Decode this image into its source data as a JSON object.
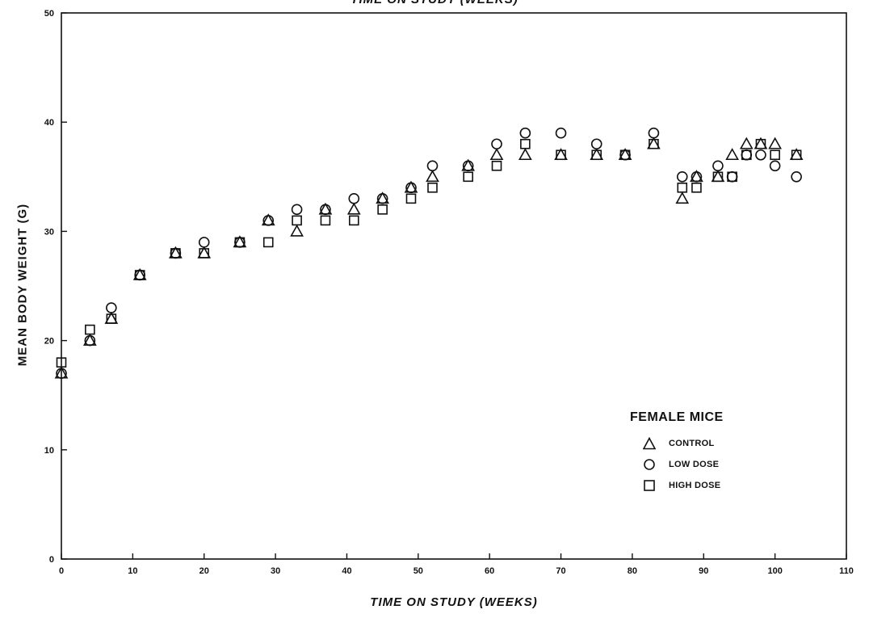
{
  "page": {
    "top_title": "TIME ON STUDY (WEEKS)"
  },
  "chart_data": {
    "type": "scatter",
    "title": "",
    "xlabel": "TIME ON STUDY (WEEKS)",
    "ylabel": "MEAN BODY WEIGHT (G)",
    "xlim": [
      0,
      110
    ],
    "ylim": [
      0,
      50
    ],
    "xticks": [
      0,
      10,
      20,
      30,
      40,
      50,
      60,
      70,
      80,
      90,
      100,
      110
    ],
    "yticks": [
      0,
      10,
      20,
      30,
      40,
      50
    ],
    "grid": false,
    "legend_title": "FEMALE MICE",
    "legend_position": "bottom-right",
    "series": [
      {
        "name": "CONTROL",
        "marker": "triangle",
        "points": [
          [
            0,
            17
          ],
          [
            4,
            20
          ],
          [
            7,
            22
          ],
          [
            11,
            26
          ],
          [
            16,
            28
          ],
          [
            20,
            28
          ],
          [
            25,
            29
          ],
          [
            29,
            31
          ],
          [
            33,
            30
          ],
          [
            37,
            32
          ],
          [
            41,
            32
          ],
          [
            45,
            33
          ],
          [
            49,
            34
          ],
          [
            52,
            35
          ],
          [
            57,
            36
          ],
          [
            61,
            37
          ],
          [
            65,
            37
          ],
          [
            70,
            37
          ],
          [
            75,
            37
          ],
          [
            79,
            37
          ],
          [
            83,
            38
          ],
          [
            87,
            33
          ],
          [
            89,
            35
          ],
          [
            92,
            35
          ],
          [
            94,
            37
          ],
          [
            96,
            38
          ],
          [
            98,
            38
          ],
          [
            100,
            38
          ],
          [
            103,
            37
          ]
        ]
      },
      {
        "name": "LOW DOSE",
        "marker": "circle",
        "points": [
          [
            0,
            17
          ],
          [
            4,
            20
          ],
          [
            7,
            23
          ],
          [
            11,
            26
          ],
          [
            16,
            28
          ],
          [
            20,
            29
          ],
          [
            25,
            29
          ],
          [
            29,
            31
          ],
          [
            33,
            32
          ],
          [
            37,
            32
          ],
          [
            41,
            33
          ],
          [
            45,
            33
          ],
          [
            49,
            34
          ],
          [
            52,
            36
          ],
          [
            57,
            36
          ],
          [
            61,
            38
          ],
          [
            65,
            39
          ],
          [
            70,
            39
          ],
          [
            75,
            38
          ],
          [
            79,
            37
          ],
          [
            83,
            39
          ],
          [
            87,
            35
          ],
          [
            89,
            35
          ],
          [
            92,
            36
          ],
          [
            94,
            35
          ],
          [
            96,
            37
          ],
          [
            98,
            37
          ],
          [
            100,
            36
          ],
          [
            103,
            35
          ]
        ]
      },
      {
        "name": "HIGH DOSE",
        "marker": "square",
        "points": [
          [
            0,
            18
          ],
          [
            4,
            21
          ],
          [
            7,
            22
          ],
          [
            11,
            26
          ],
          [
            16,
            28
          ],
          [
            20,
            28
          ],
          [
            25,
            29
          ],
          [
            29,
            29
          ],
          [
            33,
            31
          ],
          [
            37,
            31
          ],
          [
            41,
            31
          ],
          [
            45,
            32
          ],
          [
            49,
            33
          ],
          [
            52,
            34
          ],
          [
            57,
            35
          ],
          [
            61,
            36
          ],
          [
            65,
            38
          ],
          [
            70,
            37
          ],
          [
            75,
            37
          ],
          [
            79,
            37
          ],
          [
            83,
            38
          ],
          [
            87,
            34
          ],
          [
            89,
            34
          ],
          [
            92,
            35
          ],
          [
            94,
            35
          ],
          [
            96,
            37
          ],
          [
            98,
            38
          ],
          [
            100,
            37
          ],
          [
            103,
            37
          ]
        ]
      }
    ]
  }
}
